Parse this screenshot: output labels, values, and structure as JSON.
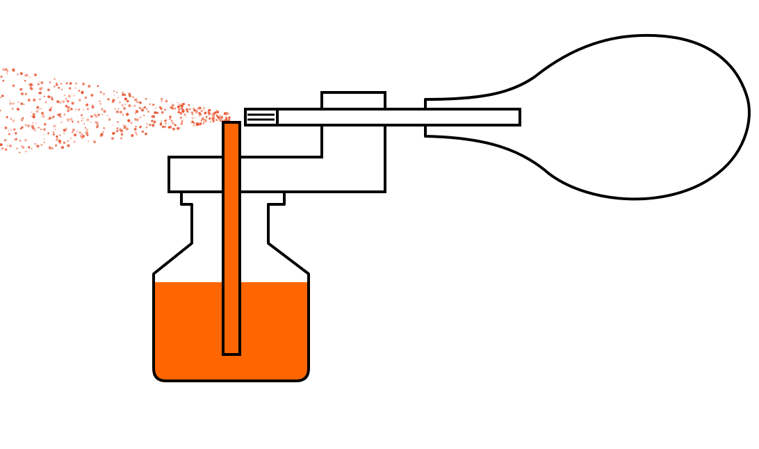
{
  "diagram": {
    "subject": "atomizer",
    "components": [
      "spray-mist",
      "nozzle",
      "pump-body",
      "air-tube",
      "rubber-bulb",
      "bottle",
      "liquid",
      "dip-tube"
    ]
  },
  "colors": {
    "outline": "#000000",
    "liquid": "#ff6600",
    "mist": "#e8502a",
    "background": "#ffffff"
  }
}
